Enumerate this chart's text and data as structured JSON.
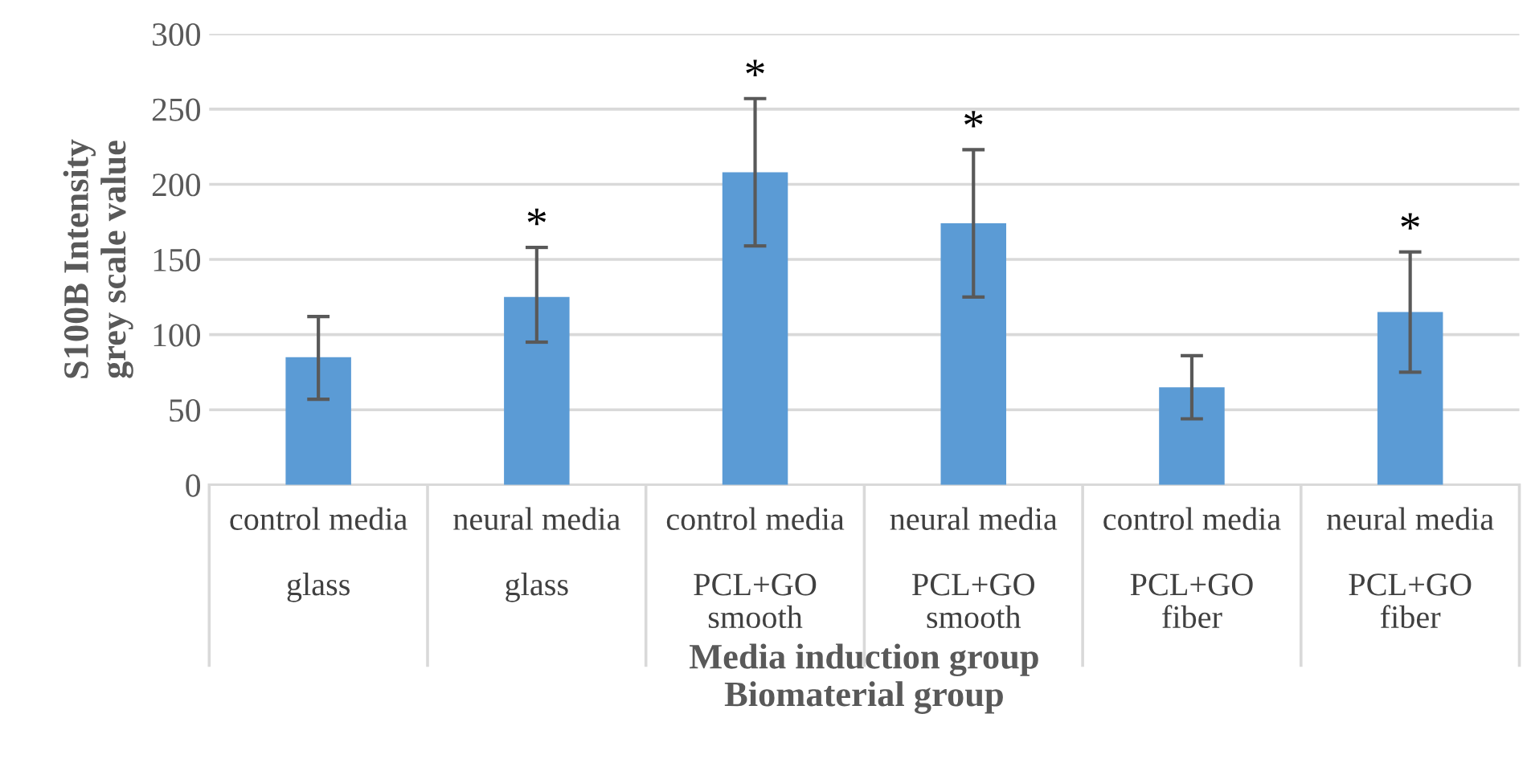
{
  "chart_data": {
    "type": "bar",
    "categories": [
      "control media\nglass",
      "neural media\nglass",
      "control media\nPCL+GO\nsmooth",
      "neural media\nPCL+GO\nsmooth",
      "control media\nPCL+GO\nfiber",
      "neural media\nPCL+GO\nfiber"
    ],
    "values": [
      85,
      125,
      208,
      174,
      65,
      115
    ],
    "errors": [
      [
        57,
        112
      ],
      [
        95,
        158
      ],
      [
        159,
        257
      ],
      [
        125,
        223
      ],
      [
        44,
        86
      ],
      [
        75,
        155
      ]
    ],
    "color": "#5b9bd5",
    "xlabel": "Media induction group\nBiomaterial group",
    "ylabel": "S100B Intensity\ngrey scale value",
    "ylim": [
      0,
      300
    ],
    "yticks": [
      0,
      50,
      100,
      150,
      200,
      250,
      300
    ],
    "grid": "y",
    "annotations": [
      {
        "text": "*",
        "x": "neural media\nglass",
        "y": 158
      },
      {
        "text": "*",
        "x": "control media\nPCL+GO\nsmooth",
        "y": 257
      },
      {
        "text": "*",
        "x": "neural media\nPCL+GO\nsmooth",
        "y": 223
      },
      {
        "text": "*",
        "x": "neural media\nPCL+GO\nfiber",
        "y": 155
      }
    ]
  }
}
